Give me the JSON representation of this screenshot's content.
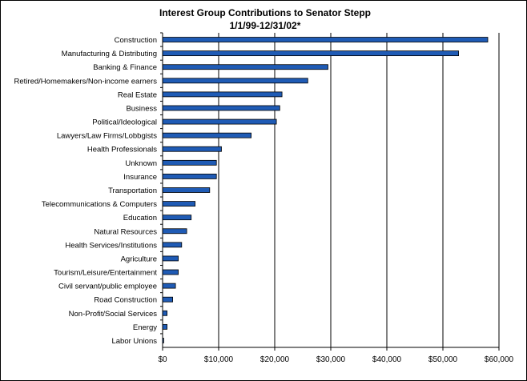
{
  "chart_data": {
    "type": "bar",
    "orientation": "horizontal",
    "title": "Interest Group Contributions to Senator Stepp",
    "subtitle": "1/1/99-12/31/02*",
    "xlabel": "",
    "ylabel": "",
    "xlim": [
      0,
      60000
    ],
    "x_ticks": [
      0,
      10000,
      20000,
      30000,
      40000,
      50000,
      60000
    ],
    "x_tick_labels": [
      "$0",
      "$10,000",
      "$20,000",
      "$30,000",
      "$40,000",
      "$50,000",
      "$60,000"
    ],
    "grid": "vertical",
    "legend": "none",
    "bar_color": "#1f5bb5",
    "categories": [
      "Construction",
      "Manufacturing & Distributing",
      "Banking & Finance",
      "Retired/Homemakers/Non-income earners",
      "Real Estate",
      "Business",
      "Political/Ideological",
      "Lawyers/Law Firms/Lobbgists",
      "Health Professionals",
      "Unknown",
      "Insurance",
      "Transportation",
      "Telecommunications & Computers",
      "Education",
      "Natural Resources",
      "Health Services/Institutions",
      "Agriculture",
      "Tourism/Leisure/Entertainment",
      "Civil servant/public employee",
      "Road Construction",
      "Non-Profit/Social Services",
      "Energy",
      "Labor Unions"
    ],
    "values": [
      58000,
      52800,
      29500,
      25900,
      21300,
      20900,
      20300,
      15800,
      10500,
      9600,
      9600,
      8400,
      5800,
      5100,
      4300,
      3400,
      2800,
      2800,
      2300,
      1800,
      800,
      800,
      200
    ]
  }
}
